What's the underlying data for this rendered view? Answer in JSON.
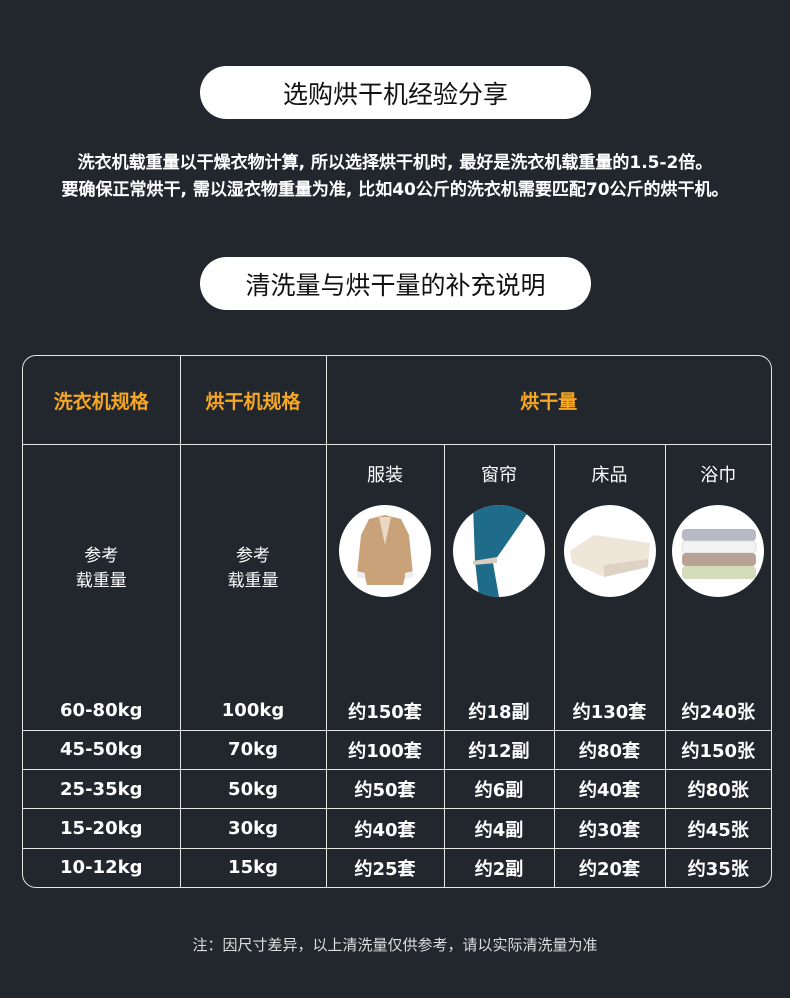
{
  "title1": "选购烘干机经验分享",
  "intro": [
    "洗衣机载重量以干燥衣物计算, 所以选择烘干机时, 最好是洗衣机载重量的1.5-2倍。",
    "要确保正常烘干, 需以湿衣物重量为准, 比如40公斤的洗衣机需要匹配70公斤的烘干机。"
  ],
  "title2": "清洗量与烘干量的补充说明",
  "table": {
    "headers": [
      "洗衣机规格",
      "烘干机规格",
      "烘干量"
    ],
    "ref": [
      "参考",
      "载重量"
    ],
    "categories": [
      "服装",
      "窗帘",
      "床品",
      "浴巾"
    ],
    "rows": [
      [
        "60-80kg",
        "100kg",
        "约150套",
        "约18副",
        "约130套",
        "约240张"
      ],
      [
        "45-50kg",
        "70kg",
        "约100套",
        "约12副",
        "约80套",
        "约150张"
      ],
      [
        "25-35kg",
        "50kg",
        "约50套",
        "约6副",
        "约40套",
        "约80张"
      ],
      [
        "15-20kg",
        "30kg",
        "约40套",
        "约4副",
        "约30套",
        "约45张"
      ],
      [
        "10-12kg",
        "15kg",
        "约25套",
        "约2副",
        "约20套",
        "约35张"
      ]
    ]
  },
  "note": "注：因尺寸差异，以上清洗量仅供参考，请以实际清洗量为准",
  "colors": {
    "background": "#22272e",
    "accent": "#f5a623"
  }
}
